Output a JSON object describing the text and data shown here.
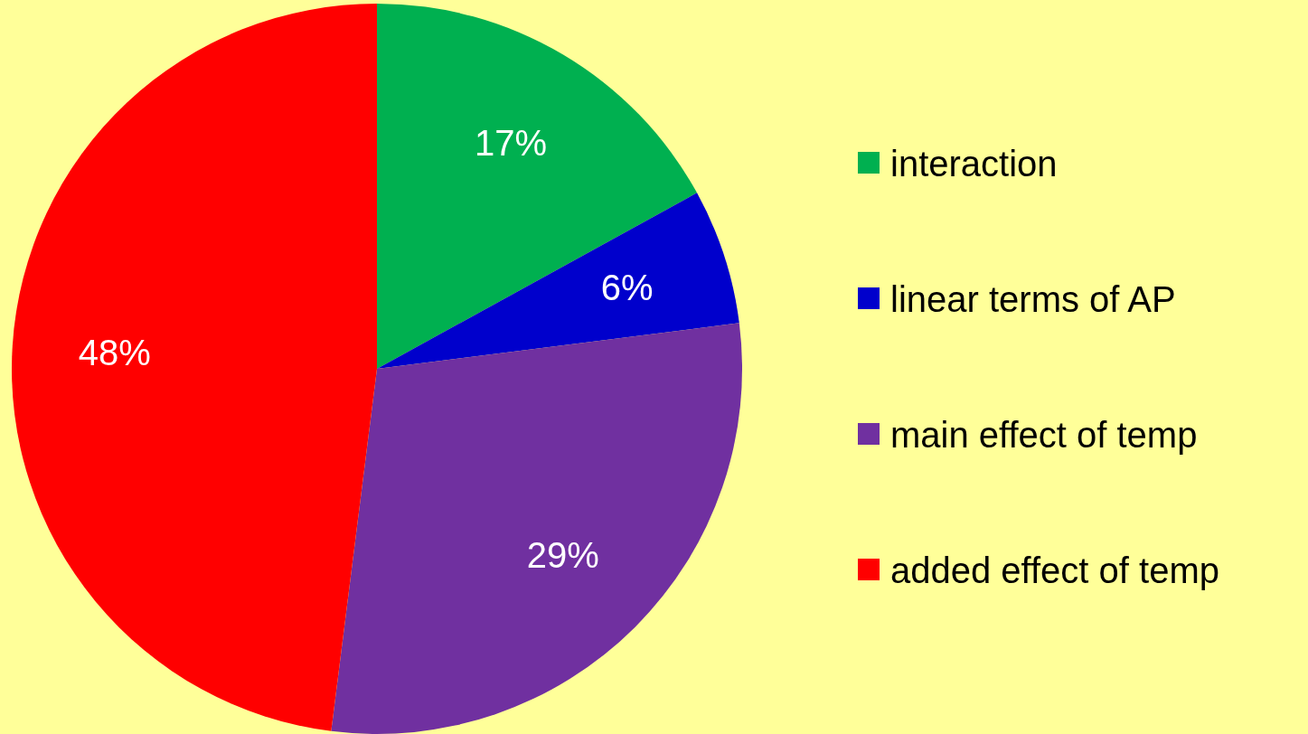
{
  "chart_data": {
    "type": "pie",
    "categories": [
      "interaction",
      "linear terms of AP",
      "main effect of temp",
      "added effect of temp"
    ],
    "values": [
      17,
      6,
      29,
      48
    ],
    "colors": [
      "#00b050",
      "#0000cc",
      "#7030a0",
      "#ff0000"
    ],
    "value_labels": [
      "17%",
      "6%",
      "29%",
      "48%"
    ],
    "legend": "right"
  }
}
